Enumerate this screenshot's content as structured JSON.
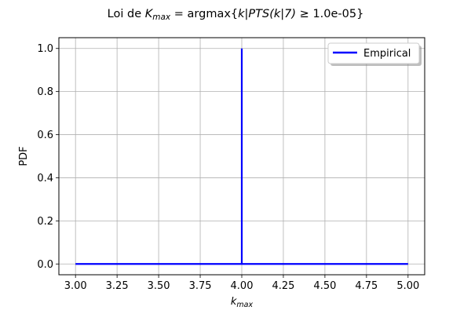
{
  "chart_data": {
    "type": "line",
    "title": {
      "prefix": "Loi de ",
      "var_main": "K",
      "var_sub": "max",
      "middle": " = argmax{",
      "expr": "k|PTS(k|7)",
      "ge": " ≥ ",
      "suffix": "1.0e-05}"
    },
    "xlabel": {
      "main": "k",
      "sub": "max"
    },
    "ylabel": "PDF",
    "xlim": [
      2.9,
      5.1
    ],
    "ylim": [
      -0.05,
      1.05
    ],
    "xticks": [
      3.0,
      3.25,
      3.5,
      3.75,
      4.0,
      4.25,
      4.5,
      4.75,
      5.0
    ],
    "xtick_labels": [
      "3.00",
      "3.25",
      "3.50",
      "3.75",
      "4.00",
      "4.25",
      "4.50",
      "4.75",
      "5.00"
    ],
    "yticks": [
      0.0,
      0.2,
      0.4,
      0.6,
      0.8,
      1.0
    ],
    "ytick_labels": [
      "0.0",
      "0.2",
      "0.4",
      "0.6",
      "0.8",
      "1.0"
    ],
    "grid": true,
    "legend_position": "top-right",
    "series": [
      {
        "name": "Empirical",
        "color": "#0000ff",
        "x": [
          3.0,
          4.0,
          4.0,
          4.0,
          5.0
        ],
        "y": [
          0.0,
          0.0,
          1.0,
          0.0,
          0.0
        ]
      }
    ]
  }
}
